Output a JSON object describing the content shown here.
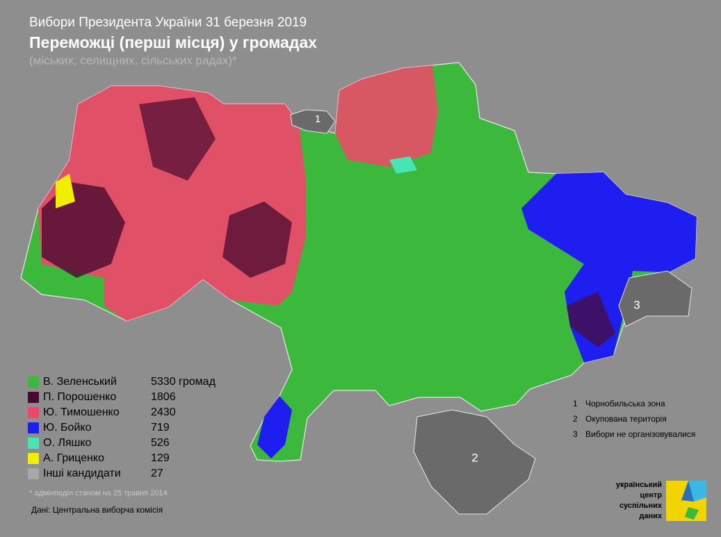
{
  "header": {
    "title": "Вибори Президента України 31 березня 2019",
    "subtitle": "Переможці (перші місця) у громадах",
    "note": "(міських, селищних, сільських радах)*"
  },
  "legend": [
    {
      "name": "В. Зеленський",
      "color": "#3cb83c",
      "count": 5330,
      "unit": "громад"
    },
    {
      "name": "П. Порошенко",
      "color": "#4a0a30",
      "count": 1806
    },
    {
      "name": "Ю. Тимошенко",
      "color": "#f2456a",
      "count": 2430
    },
    {
      "name": "Ю. Бойко",
      "color": "#1e1ef0",
      "count": 719
    },
    {
      "name": "О. Ляшко",
      "color": "#45e6b4",
      "count": 526
    },
    {
      "name": "А. Гриценко",
      "color": "#f2ee00",
      "count": 129
    },
    {
      "name": "Інші кандидати",
      "color": "#a8a8a8",
      "count": 27
    }
  ],
  "zones": [
    {
      "number": 1,
      "label": "Чорнобильська зона"
    },
    {
      "number": 2,
      "label": "Окупована територія"
    },
    {
      "number": 3,
      "label": "Вибори не організовувалися"
    }
  ],
  "footnote": "* адмінподіл станом на 25 травня 2014",
  "source": "Дані: Центральна виборча комісія",
  "logo": [
    "український",
    "центр",
    "суспільних",
    "даних"
  ]
}
